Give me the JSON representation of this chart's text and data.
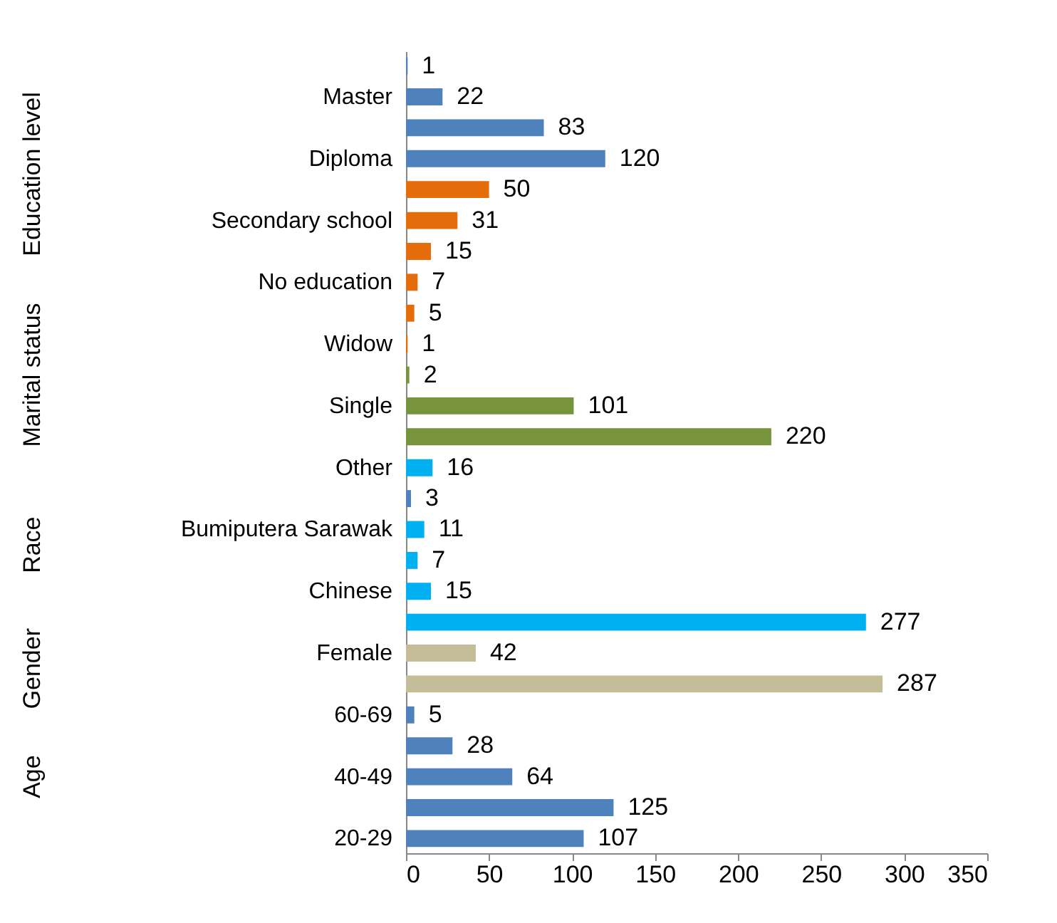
{
  "chart_data": {
    "type": "bar",
    "orientation": "horizontal",
    "categories": [
      null,
      "Master",
      null,
      "Diploma",
      null,
      "Secondary school",
      null,
      "No education",
      null,
      "Widow",
      null,
      "Single",
      null,
      "Other",
      null,
      "Bumiputera Sarawak",
      null,
      "Chinese",
      null,
      "Female",
      null,
      "60-69",
      null,
      "40-49",
      null,
      "20-29"
    ],
    "values": [
      1,
      22,
      83,
      120,
      50,
      31,
      15,
      7,
      5,
      1,
      2,
      101,
      220,
      16,
      3,
      11,
      7,
      15,
      277,
      42,
      287,
      5,
      28,
      64,
      125,
      107
    ],
    "colors": [
      "#4f81bd",
      "#4f81bd",
      "#4f81bd",
      "#4f81bd",
      "#e46c0a",
      "#e46c0a",
      "#e46c0a",
      "#e46c0a",
      "#e46c0a",
      "#e46c0a",
      "#77933c",
      "#77933c",
      "#77933c",
      "#00b0f0",
      "#4f81bd",
      "#00b0f0",
      "#00b0f0",
      "#00b0f0",
      "#00b0f0",
      "#c4bd97",
      "#c4bd97",
      "#4f81bd",
      "#4f81bd",
      "#4f81bd",
      "#4f81bd",
      "#4f81bd"
    ],
    "xlim": [
      0,
      350
    ],
    "xticks": [
      0,
      50,
      100,
      150,
      200,
      250,
      300,
      350
    ],
    "grid": false,
    "data_labels": true,
    "annotations": [
      "Education level",
      "Marital status",
      "Race",
      "Gender",
      "Age"
    ]
  }
}
